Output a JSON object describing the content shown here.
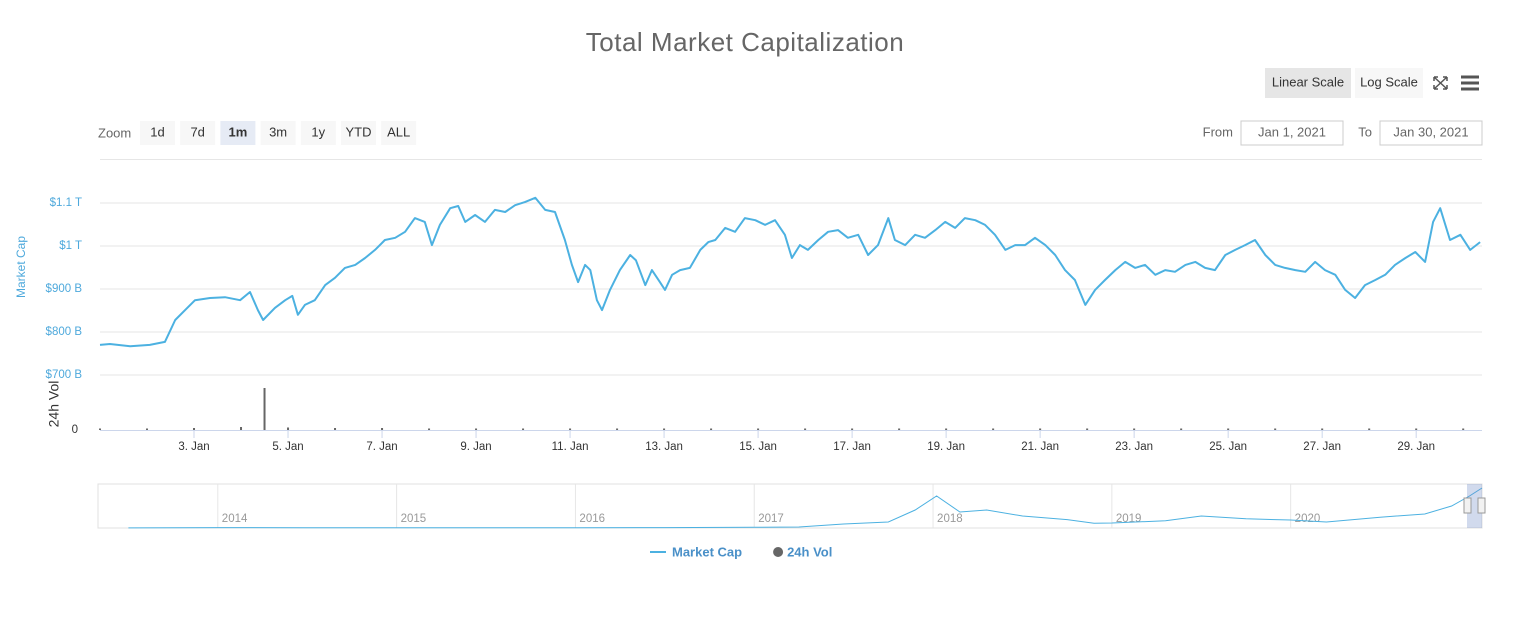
{
  "chart_data": {
    "type": "line",
    "title": "Total Market Capitalization",
    "y_label": "Market Cap",
    "y2_label": "24h Vol",
    "log_scale": false,
    "grid": true,
    "legend": "bottom",
    "xlim": [
      1,
      30.4
    ],
    "xticks": [
      {
        "value": 3,
        "label": "3. Jan"
      },
      {
        "value": 5,
        "label": "5. Jan"
      },
      {
        "value": 7,
        "label": "7. Jan"
      },
      {
        "value": 9,
        "label": "9. Jan"
      },
      {
        "value": 11,
        "label": "11. Jan"
      },
      {
        "value": 13,
        "label": "13. Jan"
      },
      {
        "value": 15,
        "label": "15. Jan"
      },
      {
        "value": 17,
        "label": "17. Jan"
      },
      {
        "value": 19,
        "label": "19. Jan"
      },
      {
        "value": 21,
        "label": "21. Jan"
      },
      {
        "value": 23,
        "label": "23. Jan"
      },
      {
        "value": 25,
        "label": "25. Jan"
      },
      {
        "value": 27,
        "label": "27. Jan"
      },
      {
        "value": 29,
        "label": "29. Jan"
      }
    ],
    "ylim": [
      700,
      1200
    ],
    "yticks": [
      {
        "value": 700,
        "label": "$700 B"
      },
      {
        "value": 800,
        "label": "$800 B"
      },
      {
        "value": 900,
        "label": "$900 B"
      },
      {
        "value": 1000,
        "label": "$1 T"
      },
      {
        "value": 1100,
        "label": "$1.1 T"
      }
    ],
    "y2lim": [
      0,
      100
    ],
    "y2ticks": [
      0
    ],
    "series": [
      {
        "name": "Market Cap",
        "color": "#4cb1e1",
        "x": [
          1.0,
          1.21,
          1.64,
          2.06,
          2.38,
          2.6,
          2.81,
          3.02,
          3.34,
          3.66,
          3.98,
          4.19,
          4.36,
          4.47,
          4.72,
          4.94,
          5.09,
          5.21,
          5.36,
          5.57,
          5.79,
          6.0,
          6.21,
          6.43,
          6.64,
          6.85,
          7.06,
          7.28,
          7.49,
          7.7,
          7.91,
          8.06,
          8.23,
          8.45,
          8.62,
          8.77,
          8.98,
          9.19,
          9.4,
          9.62,
          9.83,
          10.04,
          10.26,
          10.47,
          10.68,
          10.89,
          11.04,
          11.17,
          11.32,
          11.43,
          11.57,
          11.68,
          11.85,
          12.06,
          12.28,
          12.4,
          12.6,
          12.74,
          12.91,
          13.02,
          13.17,
          13.34,
          13.55,
          13.77,
          13.94,
          14.09,
          14.3,
          14.51,
          14.72,
          14.94,
          15.15,
          15.36,
          15.57,
          15.72,
          15.89,
          16.06,
          16.28,
          16.49,
          16.7,
          16.91,
          17.13,
          17.34,
          17.55,
          17.77,
          17.91,
          18.13,
          18.34,
          18.55,
          18.77,
          18.98,
          19.19,
          19.4,
          19.62,
          19.83,
          20.04,
          20.26,
          20.47,
          20.68,
          20.89,
          21.11,
          21.32,
          21.53,
          21.74,
          21.96,
          22.17,
          22.38,
          22.6,
          22.81,
          23.02,
          23.23,
          23.45,
          23.66,
          23.87,
          24.09,
          24.3,
          24.51,
          24.72,
          24.94,
          25.15,
          25.36,
          25.57,
          25.79,
          26.0,
          26.21,
          26.43,
          26.64,
          26.85,
          27.06,
          27.28,
          27.49,
          27.7,
          27.91,
          28.13,
          28.34,
          28.55,
          28.77,
          28.98,
          29.19,
          29.36,
          29.51,
          29.72,
          29.94,
          30.15,
          30.36
        ],
        "values": [
          770,
          772,
          767,
          770,
          777,
          828,
          851,
          874,
          879,
          881,
          874,
          893,
          851,
          828,
          856,
          874,
          884,
          840,
          863,
          874,
          909,
          926,
          949,
          956,
          972,
          991,
          1014,
          1019,
          1033,
          1065,
          1056,
          1002,
          1049,
          1088,
          1093,
          1056,
          1072,
          1056,
          1084,
          1079,
          1095,
          1102,
          1112,
          1084,
          1079,
          1014,
          956,
          916,
          956,
          944,
          874,
          851,
          898,
          944,
          979,
          967,
          909,
          944,
          916,
          898,
          933,
          944,
          949,
          991,
          1009,
          1014,
          1042,
          1033,
          1065,
          1060,
          1049,
          1060,
          1026,
          972,
          1002,
          991,
          1014,
          1033,
          1037,
          1019,
          1026,
          979,
          1002,
          1065,
          1014,
          1002,
          1026,
          1019,
          1037,
          1056,
          1042,
          1065,
          1060,
          1049,
          1026,
          991,
          1002,
          1002,
          1019,
          1002,
          979,
          944,
          921,
          863,
          898,
          921,
          944,
          963,
          949,
          956,
          933,
          944,
          940,
          956,
          963,
          949,
          944,
          979,
          991,
          1002,
          1014,
          979,
          956,
          949,
          944,
          940,
          963,
          944,
          933,
          898,
          879,
          909,
          921,
          933,
          956,
          972,
          986,
          963,
          1056,
          1088,
          1014,
          1026,
          991,
          1009
        ]
      },
      {
        "name": "24h Vol",
        "color": "#666666",
        "axis": "y2",
        "x": [
          1,
          2,
          3,
          4,
          4.5,
          5,
          6,
          7,
          8,
          9,
          10,
          11,
          12,
          13,
          14,
          15,
          16,
          17,
          18,
          19,
          20,
          21,
          22,
          23,
          24,
          25,
          26,
          27,
          28,
          29,
          30
        ],
        "values": [
          3,
          3,
          4,
          6,
          84,
          5,
          4,
          4,
          3,
          3,
          3,
          3,
          3,
          3,
          3,
          3,
          3,
          3,
          3,
          3,
          3,
          3,
          3,
          3,
          3,
          3,
          3,
          3,
          3,
          3,
          3
        ]
      }
    ],
    "navigator": {
      "xlim": [
        2013.33,
        2021.07
      ],
      "ylim": [
        0,
        1100
      ],
      "xticks": [
        2014,
        2015,
        2016,
        2017,
        2018,
        2019,
        2020
      ],
      "x": [
        2013.5,
        2014,
        2014.5,
        2015,
        2015.5,
        2016,
        2016.5,
        2017,
        2017.25,
        2017.5,
        2017.75,
        2017.9,
        2018.02,
        2018.15,
        2018.3,
        2018.5,
        2018.75,
        2018.9,
        2019,
        2019.3,
        2019.5,
        2019.75,
        2020,
        2020.2,
        2020.5,
        2020.75,
        2020.9,
        2021.0,
        2021.07
      ],
      "values": [
        2,
        10,
        8,
        5,
        4,
        7,
        10,
        17,
        25,
        100,
        150,
        450,
        800,
        400,
        450,
        300,
        210,
        120,
        125,
        180,
        300,
        230,
        200,
        150,
        270,
        350,
        550,
        800,
        1000
      ]
    }
  },
  "ui": {
    "zoom_label": "Zoom",
    "zoom_buttons": [
      "1d",
      "7d",
      "1m",
      "3m",
      "1y",
      "YTD",
      "ALL"
    ],
    "zoom_selected": 2,
    "scale_buttons": [
      "Linear Scale",
      "Log Scale"
    ],
    "from_label": "From",
    "from": "Jan 1, 2021",
    "to_label": "To",
    "to": "Jan 30, 2021"
  }
}
